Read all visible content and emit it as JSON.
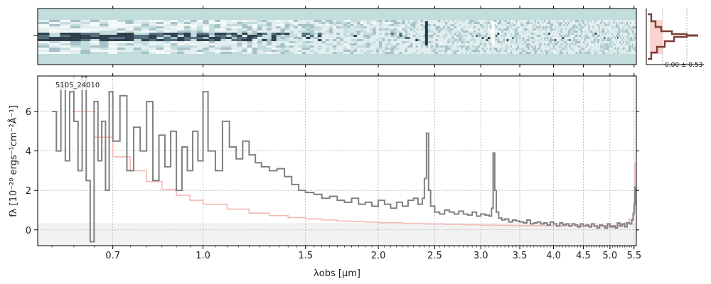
{
  "chart_data": {
    "type": "line",
    "object_label": "5105_24010",
    "xlabel": "λobs [μm]",
    "ylabel": "fλ [10⁻²⁰ ergs⁻¹cm⁻²Å⁻¹]",
    "ylim": [
      -0.8,
      7.8
    ],
    "xlim_um": [
      0.52,
      5.55
    ],
    "x_ticks": [
      {
        "label": "0.7",
        "value": 0.7
      },
      {
        "label": "1.0",
        "value": 1.0
      },
      {
        "label": "1.5",
        "value": 1.5
      },
      {
        "label": "2.0",
        "value": 2.0
      },
      {
        "label": "2.5",
        "value": 2.5
      },
      {
        "label": "3.0",
        "value": 3.0
      },
      {
        "label": "3.5",
        "value": 3.5
      },
      {
        "label": "4.0",
        "value": 4.0
      },
      {
        "label": "4.5",
        "value": 4.5
      },
      {
        "label": "5.0",
        "value": 5.0
      },
      {
        "label": "5.5",
        "value": 5.5
      }
    ],
    "y_ticks": [
      0,
      2,
      4,
      6
    ],
    "grid": true,
    "histogram_annotation": "0.00 ± 0.53",
    "series": [
      {
        "color": "#808080",
        "points": [
          [
            0.55,
            6.0
          ],
          [
            0.56,
            4.0
          ],
          [
            0.57,
            7.5
          ],
          [
            0.58,
            3.5
          ],
          [
            0.59,
            7.0
          ],
          [
            0.6,
            5.5
          ],
          [
            0.61,
            3.0
          ],
          [
            0.62,
            7.8
          ],
          [
            0.63,
            2.5
          ],
          [
            0.64,
            -0.6
          ],
          [
            0.65,
            6.5
          ],
          [
            0.66,
            3.5
          ],
          [
            0.67,
            5.5
          ],
          [
            0.68,
            2.0
          ],
          [
            0.69,
            7.0
          ],
          [
            0.7,
            4.5
          ],
          [
            0.72,
            6.8
          ],
          [
            0.74,
            3.0
          ],
          [
            0.76,
            5.2
          ],
          [
            0.78,
            4.0
          ],
          [
            0.8,
            6.5
          ],
          [
            0.82,
            2.5
          ],
          [
            0.84,
            4.8
          ],
          [
            0.86,
            3.2
          ],
          [
            0.88,
            5.0
          ],
          [
            0.9,
            2.0
          ],
          [
            0.92,
            4.2
          ],
          [
            0.94,
            3.0
          ],
          [
            0.96,
            5.0
          ],
          [
            0.98,
            3.5
          ],
          [
            1.0,
            7.0
          ],
          [
            1.02,
            4.0
          ],
          [
            1.05,
            3.0
          ],
          [
            1.08,
            5.5
          ],
          [
            1.11,
            4.2
          ],
          [
            1.14,
            3.6
          ],
          [
            1.17,
            4.5
          ],
          [
            1.2,
            3.8
          ],
          [
            1.23,
            3.4
          ],
          [
            1.26,
            3.2
          ],
          [
            1.3,
            3.0
          ],
          [
            1.34,
            3.1
          ],
          [
            1.38,
            2.7
          ],
          [
            1.42,
            2.3
          ],
          [
            1.46,
            2.0
          ],
          [
            1.5,
            1.9
          ],
          [
            1.55,
            1.8
          ],
          [
            1.6,
            1.6
          ],
          [
            1.65,
            1.7
          ],
          [
            1.7,
            1.5
          ],
          [
            1.75,
            1.4
          ],
          [
            1.8,
            1.6
          ],
          [
            1.85,
            1.3
          ],
          [
            1.9,
            1.4
          ],
          [
            1.95,
            1.2
          ],
          [
            2.0,
            1.5
          ],
          [
            2.05,
            1.3
          ],
          [
            2.1,
            1.1
          ],
          [
            2.15,
            1.4
          ],
          [
            2.2,
            1.2
          ],
          [
            2.25,
            1.5
          ],
          [
            2.3,
            1.6
          ],
          [
            2.34,
            1.3
          ],
          [
            2.38,
            1.6
          ],
          [
            2.4,
            2.6
          ],
          [
            2.42,
            4.9
          ],
          [
            2.44,
            2.0
          ],
          [
            2.46,
            1.2
          ],
          [
            2.5,
            0.9
          ],
          [
            2.55,
            0.8
          ],
          [
            2.6,
            1.0
          ],
          [
            2.65,
            0.9
          ],
          [
            2.7,
            0.8
          ],
          [
            2.75,
            0.95
          ],
          [
            2.8,
            0.8
          ],
          [
            2.85,
            0.75
          ],
          [
            2.9,
            0.9
          ],
          [
            2.95,
            0.7
          ],
          [
            3.0,
            0.8
          ],
          [
            3.05,
            0.75
          ],
          [
            3.1,
            0.7
          ],
          [
            3.13,
            1.1
          ],
          [
            3.15,
            3.9
          ],
          [
            3.17,
            2.0
          ],
          [
            3.19,
            0.9
          ],
          [
            3.22,
            0.6
          ],
          [
            3.26,
            0.5
          ],
          [
            3.3,
            0.55
          ],
          [
            3.35,
            0.4
          ],
          [
            3.4,
            0.5
          ],
          [
            3.45,
            0.45
          ],
          [
            3.5,
            0.4
          ],
          [
            3.55,
            0.35
          ],
          [
            3.6,
            0.5
          ],
          [
            3.65,
            0.3
          ],
          [
            3.7,
            0.35
          ],
          [
            3.75,
            0.4
          ],
          [
            3.8,
            0.3
          ],
          [
            3.85,
            0.35
          ],
          [
            3.9,
            0.25
          ],
          [
            3.95,
            0.4
          ],
          [
            4.0,
            0.3
          ],
          [
            4.05,
            0.2
          ],
          [
            4.1,
            0.35
          ],
          [
            4.15,
            0.25
          ],
          [
            4.2,
            0.3
          ],
          [
            4.25,
            0.2
          ],
          [
            4.3,
            0.3
          ],
          [
            4.35,
            0.25
          ],
          [
            4.4,
            0.15
          ],
          [
            4.45,
            0.3
          ],
          [
            4.5,
            0.2
          ],
          [
            4.55,
            0.25
          ],
          [
            4.6,
            0.15
          ],
          [
            4.65,
            0.3
          ],
          [
            4.7,
            0.2
          ],
          [
            4.75,
            0.1
          ],
          [
            4.8,
            0.25
          ],
          [
            4.85,
            0.2
          ],
          [
            4.9,
            0.1
          ],
          [
            4.95,
            0.3
          ],
          [
            5.0,
            0.15
          ],
          [
            5.05,
            0.2
          ],
          [
            5.1,
            0.1
          ],
          [
            5.15,
            0.35
          ],
          [
            5.2,
            0.2
          ],
          [
            5.25,
            0.3
          ],
          [
            5.3,
            0.15
          ],
          [
            5.35,
            0.35
          ],
          [
            5.4,
            0.3
          ],
          [
            5.45,
            0.5
          ],
          [
            5.48,
            0.8
          ],
          [
            5.5,
            1.3
          ],
          [
            5.52,
            2.2
          ]
        ]
      },
      {
        "color": "#f4b8b4",
        "points": [
          [
            0.55,
            7.8
          ],
          [
            0.6,
            6.0
          ],
          [
            0.65,
            4.7
          ],
          [
            0.7,
            3.7
          ],
          [
            0.75,
            3.0
          ],
          [
            0.8,
            2.45
          ],
          [
            0.85,
            2.05
          ],
          [
            0.9,
            1.75
          ],
          [
            0.95,
            1.5
          ],
          [
            1.0,
            1.3
          ],
          [
            1.1,
            1.05
          ],
          [
            1.2,
            0.85
          ],
          [
            1.3,
            0.72
          ],
          [
            1.4,
            0.62
          ],
          [
            1.5,
            0.55
          ],
          [
            1.6,
            0.5
          ],
          [
            1.7,
            0.45
          ],
          [
            1.8,
            0.42
          ],
          [
            1.9,
            0.39
          ],
          [
            2.0,
            0.36
          ],
          [
            2.2,
            0.32
          ],
          [
            2.4,
            0.3
          ],
          [
            2.6,
            0.28
          ],
          [
            2.8,
            0.26
          ],
          [
            3.0,
            0.24
          ],
          [
            3.2,
            0.23
          ],
          [
            3.4,
            0.22
          ],
          [
            3.6,
            0.21
          ],
          [
            3.8,
            0.21
          ],
          [
            4.0,
            0.2
          ],
          [
            4.2,
            0.2
          ],
          [
            4.4,
            0.2
          ],
          [
            4.6,
            0.2
          ],
          [
            4.8,
            0.21
          ],
          [
            5.0,
            0.22
          ],
          [
            5.2,
            0.27
          ],
          [
            5.3,
            0.35
          ],
          [
            5.4,
            0.55
          ],
          [
            5.48,
            0.9
          ],
          [
            5.52,
            3.4
          ]
        ]
      }
    ]
  }
}
